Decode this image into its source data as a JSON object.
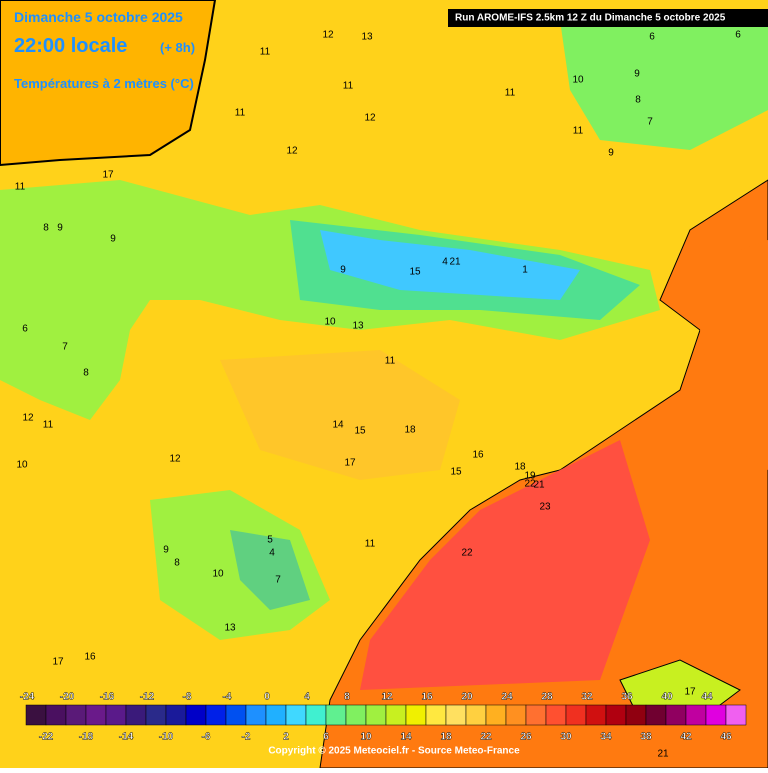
{
  "header": {
    "date": "Dimanche 5 octobre 2025",
    "time": "22:00 locale",
    "offset": "(+ 8h)",
    "variable": "Températures à 2 mètres (°C)",
    "run": "Run AROME-IFS 2.5km 12 Z du Dimanche 5 octobre 2025"
  },
  "footer": {
    "copyright": "Copyright © 2025 Meteociel.fr - Source Meteo-France"
  },
  "colorbar": {
    "top_labels": [
      -24,
      -20,
      -16,
      -12,
      -8,
      -4,
      0,
      4,
      8,
      12,
      16,
      20,
      24,
      28,
      32,
      36,
      40,
      44
    ],
    "bottom_labels": [
      -22,
      -18,
      -14,
      -10,
      -6,
      -2,
      2,
      6,
      10,
      14,
      18,
      22,
      26,
      30,
      34,
      38,
      42,
      46
    ],
    "colors": [
      "#3a1040",
      "#4a1060",
      "#5a1a78",
      "#6a1a8a",
      "#5a1a8a",
      "#3a1a7a",
      "#2a2a8a",
      "#1a1a9a",
      "#0000c8",
      "#0020e8",
      "#0050f0",
      "#1e90ff",
      "#20b0ff",
      "#40d8ff",
      "#40f0d0",
      "#60f090",
      "#80f060",
      "#a0f040",
      "#c8f020",
      "#f0f000",
      "#ffe840",
      "#ffe060",
      "#ffd040",
      "#ffb020",
      "#ff9020",
      "#ff7030",
      "#ff5030",
      "#f03020",
      "#d01010",
      "#b00010",
      "#900010",
      "#700030",
      "#900060",
      "#c000a0",
      "#e000e0",
      "#f060f0"
    ]
  },
  "map_labels": [
    11,
    12,
    13,
    11,
    11,
    12,
    12,
    11,
    10,
    11,
    9,
    9,
    8,
    7,
    6,
    6,
    17,
    11,
    8,
    9,
    9,
    9,
    15,
    4,
    21,
    1,
    10,
    13,
    6,
    7,
    8,
    11,
    12,
    11,
    14,
    15,
    18,
    12,
    10,
    17,
    15,
    16,
    18,
    19,
    22,
    21,
    23,
    11,
    22,
    9,
    8,
    10,
    5,
    4,
    7,
    13,
    17,
    16,
    17,
    21
  ]
}
